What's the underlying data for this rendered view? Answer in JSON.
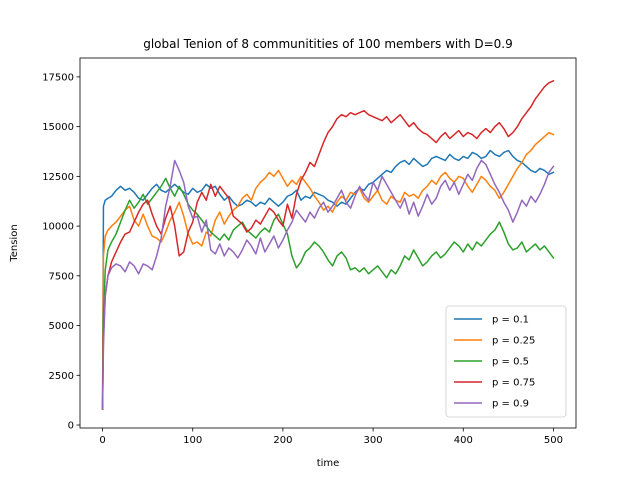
{
  "chart_data": {
    "type": "line",
    "title": "global Tenion of 8 communitities of 100 members with  D=0.9",
    "xlabel": "time",
    "ylabel": "Tension",
    "xlim": [
      -25,
      525
    ],
    "ylim": [
      -150,
      18450
    ],
    "xticks": [
      0,
      100,
      200,
      300,
      400,
      500
    ],
    "yticks": [
      0,
      2500,
      5000,
      7500,
      10000,
      12500,
      15000,
      17500
    ],
    "grid": false,
    "legend_position": "lower-right",
    "series": [
      {
        "name": "p = 0.1",
        "color": "#1f77b4",
        "x": [
          0,
          1,
          3,
          6,
          10,
          15,
          20,
          25,
          30,
          35,
          40,
          45,
          50,
          55,
          60,
          65,
          70,
          75,
          80,
          85,
          90,
          95,
          100,
          105,
          110,
          115,
          120,
          125,
          130,
          135,
          140,
          145,
          150,
          155,
          160,
          165,
          170,
          175,
          180,
          185,
          190,
          195,
          200,
          205,
          210,
          215,
          220,
          225,
          230,
          235,
          240,
          245,
          250,
          255,
          260,
          265,
          270,
          275,
          280,
          285,
          290,
          295,
          300,
          305,
          310,
          315,
          320,
          325,
          330,
          335,
          340,
          345,
          350,
          355,
          360,
          365,
          370,
          375,
          380,
          385,
          390,
          395,
          400,
          405,
          410,
          415,
          420,
          425,
          430,
          435,
          440,
          445,
          450,
          455,
          460,
          465,
          470,
          475,
          480,
          485,
          490,
          495,
          500
        ],
        "y": [
          800,
          11000,
          11300,
          11400,
          11500,
          11800,
          12000,
          11800,
          11900,
          11700,
          11400,
          11300,
          11600,
          11900,
          12100,
          11800,
          11700,
          11900,
          12100,
          11900,
          11700,
          11600,
          11900,
          11700,
          11800,
          12100,
          11900,
          12000,
          11600,
          11300,
          11500,
          11200,
          11000,
          11100,
          11300,
          11200,
          11000,
          11200,
          11100,
          11400,
          11200,
          11000,
          11200,
          11500,
          11600,
          11800,
          11300,
          11500,
          11400,
          11700,
          11600,
          11500,
          11300,
          11200,
          11000,
          11200,
          11100,
          11400,
          11700,
          11900,
          11800,
          12100,
          12200,
          12400,
          12600,
          12800,
          12700,
          13000,
          13200,
          13300,
          13100,
          13400,
          13200,
          13000,
          13100,
          13400,
          13500,
          13400,
          13300,
          13600,
          13400,
          13300,
          13500,
          13400,
          13700,
          13600,
          13400,
          13500,
          13800,
          13600,
          13500,
          13700,
          13800,
          13500,
          13300,
          13200,
          13000,
          12800,
          12700,
          12900,
          12800,
          12600,
          12700
        ]
      },
      {
        "name": "p = 0.25",
        "color": "#ff7f0e",
        "x": [
          0,
          1,
          3,
          6,
          10,
          15,
          20,
          25,
          30,
          35,
          40,
          45,
          50,
          55,
          60,
          65,
          70,
          75,
          80,
          85,
          90,
          95,
          100,
          105,
          110,
          115,
          120,
          125,
          130,
          135,
          140,
          145,
          150,
          155,
          160,
          165,
          170,
          175,
          180,
          185,
          190,
          195,
          200,
          205,
          210,
          215,
          220,
          225,
          230,
          235,
          240,
          245,
          250,
          255,
          260,
          265,
          270,
          275,
          280,
          285,
          290,
          295,
          300,
          305,
          310,
          315,
          320,
          325,
          330,
          335,
          340,
          345,
          350,
          355,
          360,
          365,
          370,
          375,
          380,
          385,
          390,
          395,
          400,
          405,
          410,
          415,
          420,
          425,
          430,
          435,
          440,
          445,
          450,
          455,
          460,
          465,
          470,
          475,
          480,
          485,
          490,
          495,
          500
        ],
        "y": [
          800,
          8500,
          9500,
          9800,
          10000,
          10200,
          10500,
          10800,
          11000,
          10300,
          10000,
          10600,
          10000,
          9500,
          9400,
          9200,
          9700,
          10300,
          10700,
          11200,
          10500,
          9600,
          9100,
          9200,
          9000,
          9700,
          9500,
          10300,
          10700,
          10100,
          10500,
          10800,
          11000,
          11400,
          11600,
          11300,
          11900,
          12200,
          12400,
          12700,
          12500,
          12800,
          12400,
          12000,
          12300,
          12100,
          12500,
          12200,
          11900,
          11500,
          11200,
          10800,
          11000,
          10700,
          11200,
          11500,
          11300,
          11700,
          11600,
          11900,
          11400,
          11200,
          11500,
          11800,
          11300,
          11100,
          11500,
          11300,
          11200,
          11700,
          11500,
          11600,
          11400,
          11800,
          12000,
          12300,
          12100,
          12500,
          12700,
          12400,
          12200,
          12500,
          12400,
          12000,
          11700,
          12100,
          12500,
          12300,
          12000,
          11800,
          11400,
          11700,
          12100,
          12500,
          12900,
          13200,
          13600,
          13800,
          14100,
          14300,
          14500,
          14700,
          14600
        ]
      },
      {
        "name": "p = 0.5",
        "color": "#2ca02c",
        "x": [
          0,
          1,
          3,
          6,
          10,
          15,
          20,
          25,
          30,
          35,
          40,
          45,
          50,
          55,
          60,
          65,
          70,
          75,
          80,
          85,
          90,
          95,
          100,
          105,
          110,
          115,
          120,
          125,
          130,
          135,
          140,
          145,
          150,
          155,
          160,
          165,
          170,
          175,
          180,
          185,
          190,
          195,
          200,
          205,
          210,
          215,
          220,
          225,
          230,
          235,
          240,
          245,
          250,
          255,
          260,
          265,
          270,
          275,
          280,
          285,
          290,
          295,
          300,
          305,
          310,
          315,
          320,
          325,
          330,
          335,
          340,
          345,
          350,
          355,
          360,
          365,
          370,
          375,
          380,
          385,
          390,
          395,
          400,
          405,
          410,
          415,
          420,
          425,
          430,
          435,
          440,
          445,
          450,
          455,
          460,
          465,
          470,
          475,
          480,
          485,
          490,
          495,
          500
        ],
        "y": [
          800,
          5500,
          7800,
          8800,
          9200,
          9600,
          10200,
          10800,
          11300,
          10900,
          11200,
          11600,
          11100,
          11400,
          11700,
          12000,
          12400,
          11900,
          11500,
          12000,
          11600,
          11100,
          10800,
          10600,
          10300,
          10000,
          9700,
          9500,
          9300,
          9600,
          9300,
          9800,
          10000,
          10200,
          9800,
          9600,
          9400,
          9700,
          9900,
          9700,
          10300,
          10600,
          10100,
          9600,
          8500,
          7900,
          8200,
          8700,
          8900,
          9200,
          9000,
          8700,
          8300,
          8000,
          8500,
          8700,
          8400,
          7800,
          7900,
          7700,
          7900,
          7600,
          7800,
          8000,
          7700,
          7400,
          7800,
          7600,
          8000,
          8500,
          8300,
          8800,
          8400,
          8000,
          8200,
          8500,
          8700,
          8400,
          8600,
          8900,
          9200,
          9000,
          8700,
          9100,
          8800,
          9200,
          9000,
          9300,
          9600,
          9800,
          10200,
          9700,
          9100,
          8800,
          8900,
          9200,
          8700,
          8900,
          9100,
          8800,
          9000,
          8700,
          8400
        ]
      },
      {
        "name": "p = 0.75",
        "color": "#d62728",
        "x": [
          0,
          1,
          3,
          6,
          10,
          15,
          20,
          25,
          30,
          35,
          40,
          45,
          50,
          55,
          60,
          65,
          70,
          75,
          80,
          85,
          90,
          95,
          100,
          105,
          110,
          115,
          120,
          125,
          130,
          135,
          140,
          145,
          150,
          155,
          160,
          165,
          170,
          175,
          180,
          185,
          190,
          195,
          200,
          205,
          210,
          215,
          220,
          225,
          230,
          235,
          240,
          245,
          250,
          255,
          260,
          265,
          270,
          275,
          280,
          285,
          290,
          295,
          300,
          305,
          310,
          315,
          320,
          325,
          330,
          335,
          340,
          345,
          350,
          355,
          360,
          365,
          370,
          375,
          380,
          385,
          390,
          395,
          400,
          405,
          410,
          415,
          420,
          425,
          430,
          435,
          440,
          445,
          450,
          455,
          460,
          465,
          470,
          475,
          480,
          485,
          490,
          495,
          500
        ],
        "y": [
          800,
          4500,
          6500,
          7500,
          8200,
          8700,
          9200,
          9600,
          9700,
          10200,
          10700,
          11100,
          11300,
          10600,
          10000,
          9600,
          10400,
          11000,
          10000,
          8500,
          8700,
          9700,
          10200,
          11200,
          11700,
          11300,
          12100,
          11500,
          12000,
          11700,
          11400,
          10500,
          10300,
          10100,
          9700,
          9900,
          10300,
          10100,
          10500,
          10900,
          10700,
          10300,
          10000,
          11100,
          10400,
          11600,
          12300,
          12700,
          13200,
          13000,
          13600,
          14200,
          14700,
          15000,
          15400,
          15600,
          15500,
          15700,
          15600,
          15700,
          15800,
          15600,
          15500,
          15400,
          15300,
          15500,
          15200,
          15400,
          15600,
          15300,
          15000,
          15200,
          14900,
          14700,
          14600,
          14400,
          14200,
          14500,
          14700,
          14400,
          14600,
          14800,
          14500,
          14700,
          14600,
          14400,
          14700,
          14900,
          14700,
          15000,
          15200,
          14900,
          14500,
          14700,
          15000,
          15400,
          15700,
          16000,
          16400,
          16700,
          17000,
          17200,
          17300
        ]
      },
      {
        "name": "p = 0.9",
        "color": "#9467bd",
        "x": [
          0,
          1,
          3,
          6,
          10,
          15,
          20,
          25,
          30,
          35,
          40,
          45,
          50,
          55,
          60,
          65,
          70,
          75,
          80,
          85,
          90,
          95,
          100,
          105,
          110,
          115,
          120,
          125,
          130,
          135,
          140,
          145,
          150,
          155,
          160,
          165,
          170,
          175,
          180,
          185,
          190,
          195,
          200,
          205,
          210,
          215,
          220,
          225,
          230,
          235,
          240,
          245,
          250,
          255,
          260,
          265,
          270,
          275,
          280,
          285,
          290,
          295,
          300,
          305,
          310,
          315,
          320,
          325,
          330,
          335,
          340,
          345,
          350,
          355,
          360,
          365,
          370,
          375,
          380,
          385,
          390,
          395,
          400,
          405,
          410,
          415,
          420,
          425,
          430,
          435,
          440,
          445,
          450,
          455,
          460,
          465,
          470,
          475,
          480,
          485,
          490,
          495,
          500
        ],
        "y": [
          800,
          4000,
          6500,
          7500,
          7900,
          8100,
          8000,
          7700,
          8200,
          8000,
          7600,
          8100,
          8000,
          7800,
          8500,
          9400,
          11000,
          12000,
          13300,
          12800,
          12200,
          11000,
          10400,
          10500,
          9700,
          10300,
          8800,
          8600,
          9100,
          8500,
          8900,
          8700,
          8400,
          8800,
          9300,
          9000,
          8600,
          9400,
          8700,
          9100,
          9500,
          8900,
          9300,
          9800,
          10200,
          10800,
          10500,
          10200,
          10700,
          10400,
          10900,
          11200,
          10700,
          11000,
          11400,
          11800,
          11200,
          10900,
          11500,
          12000,
          11600,
          11300,
          12200,
          11800,
          12500,
          12100,
          11700,
          11300,
          10900,
          11400,
          10600,
          11200,
          10500,
          11000,
          11600,
          11100,
          11400,
          12000,
          12300,
          11800,
          12200,
          11600,
          12100,
          12600,
          12300,
          12900,
          13300,
          13100,
          12600,
          12100,
          11700,
          11200,
          10800,
          10200,
          10700,
          11300,
          11000,
          11500,
          11200,
          11600,
          12100,
          12700,
          13000
        ]
      }
    ]
  }
}
